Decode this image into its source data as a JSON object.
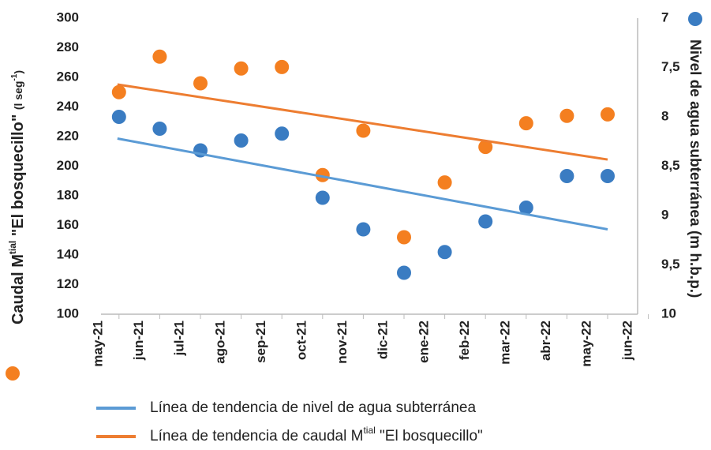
{
  "chart_data": {
    "type": "scatter",
    "categories": [
      "may-21",
      "jun-21",
      "jul-21",
      "ago-21",
      "sep-21",
      "oct-21",
      "nov-21",
      "dic-21",
      "ene-22",
      "feb-22",
      "mar-22",
      "abr-22",
      "may-22",
      "jun-22"
    ],
    "series": [
      {
        "color": "#f47f20",
        "values": [
          250,
          274,
          256,
          266,
          267,
          194,
          224,
          152,
          189,
          213,
          229,
          234,
          235,
          null
        ]
      },
      {
        "color": "#3a7cc2",
        "axis": "y2",
        "values": [
          8.0,
          8.12,
          8.34,
          8.24,
          8.17,
          8.82,
          9.14,
          9.58,
          9.37,
          9.06,
          8.92,
          8.6,
          8.6,
          null
        ]
      }
    ],
    "trendlines": [
      {
        "name": "Línea de tendencia de nivel de agua subterránea",
        "color": "#5b9bd5",
        "axis": "y2",
        "values": [
          8.22,
          9.14
        ]
      },
      {
        "name_parts": [
          "Línea de tendencia de caudal M",
          "tial",
          " \"El bosquecillo\""
        ],
        "color": "#ed7d31",
        "values": [
          255.2,
          204.5
        ]
      }
    ],
    "ylabel_parts": [
      "Caudal M",
      "tial",
      " \"El bosquecillo\" ",
      "(l seg",
      "-1",
      ")"
    ],
    "y2label": "Nivel de agua subterránea (m h.b.p.)",
    "ylim": [
      100,
      300
    ],
    "yticks": [
      100,
      120,
      140,
      160,
      180,
      200,
      220,
      240,
      260,
      280,
      300
    ],
    "y2lim": [
      7,
      10
    ],
    "y2_inverted": true,
    "y2ticks": [
      7,
      {
        "value": 7.5,
        "label": "7,5"
      },
      8,
      {
        "value": 8.5,
        "label": "8,5"
      },
      9,
      {
        "value": 9.5,
        "label": "9,5"
      },
      10
    ]
  }
}
